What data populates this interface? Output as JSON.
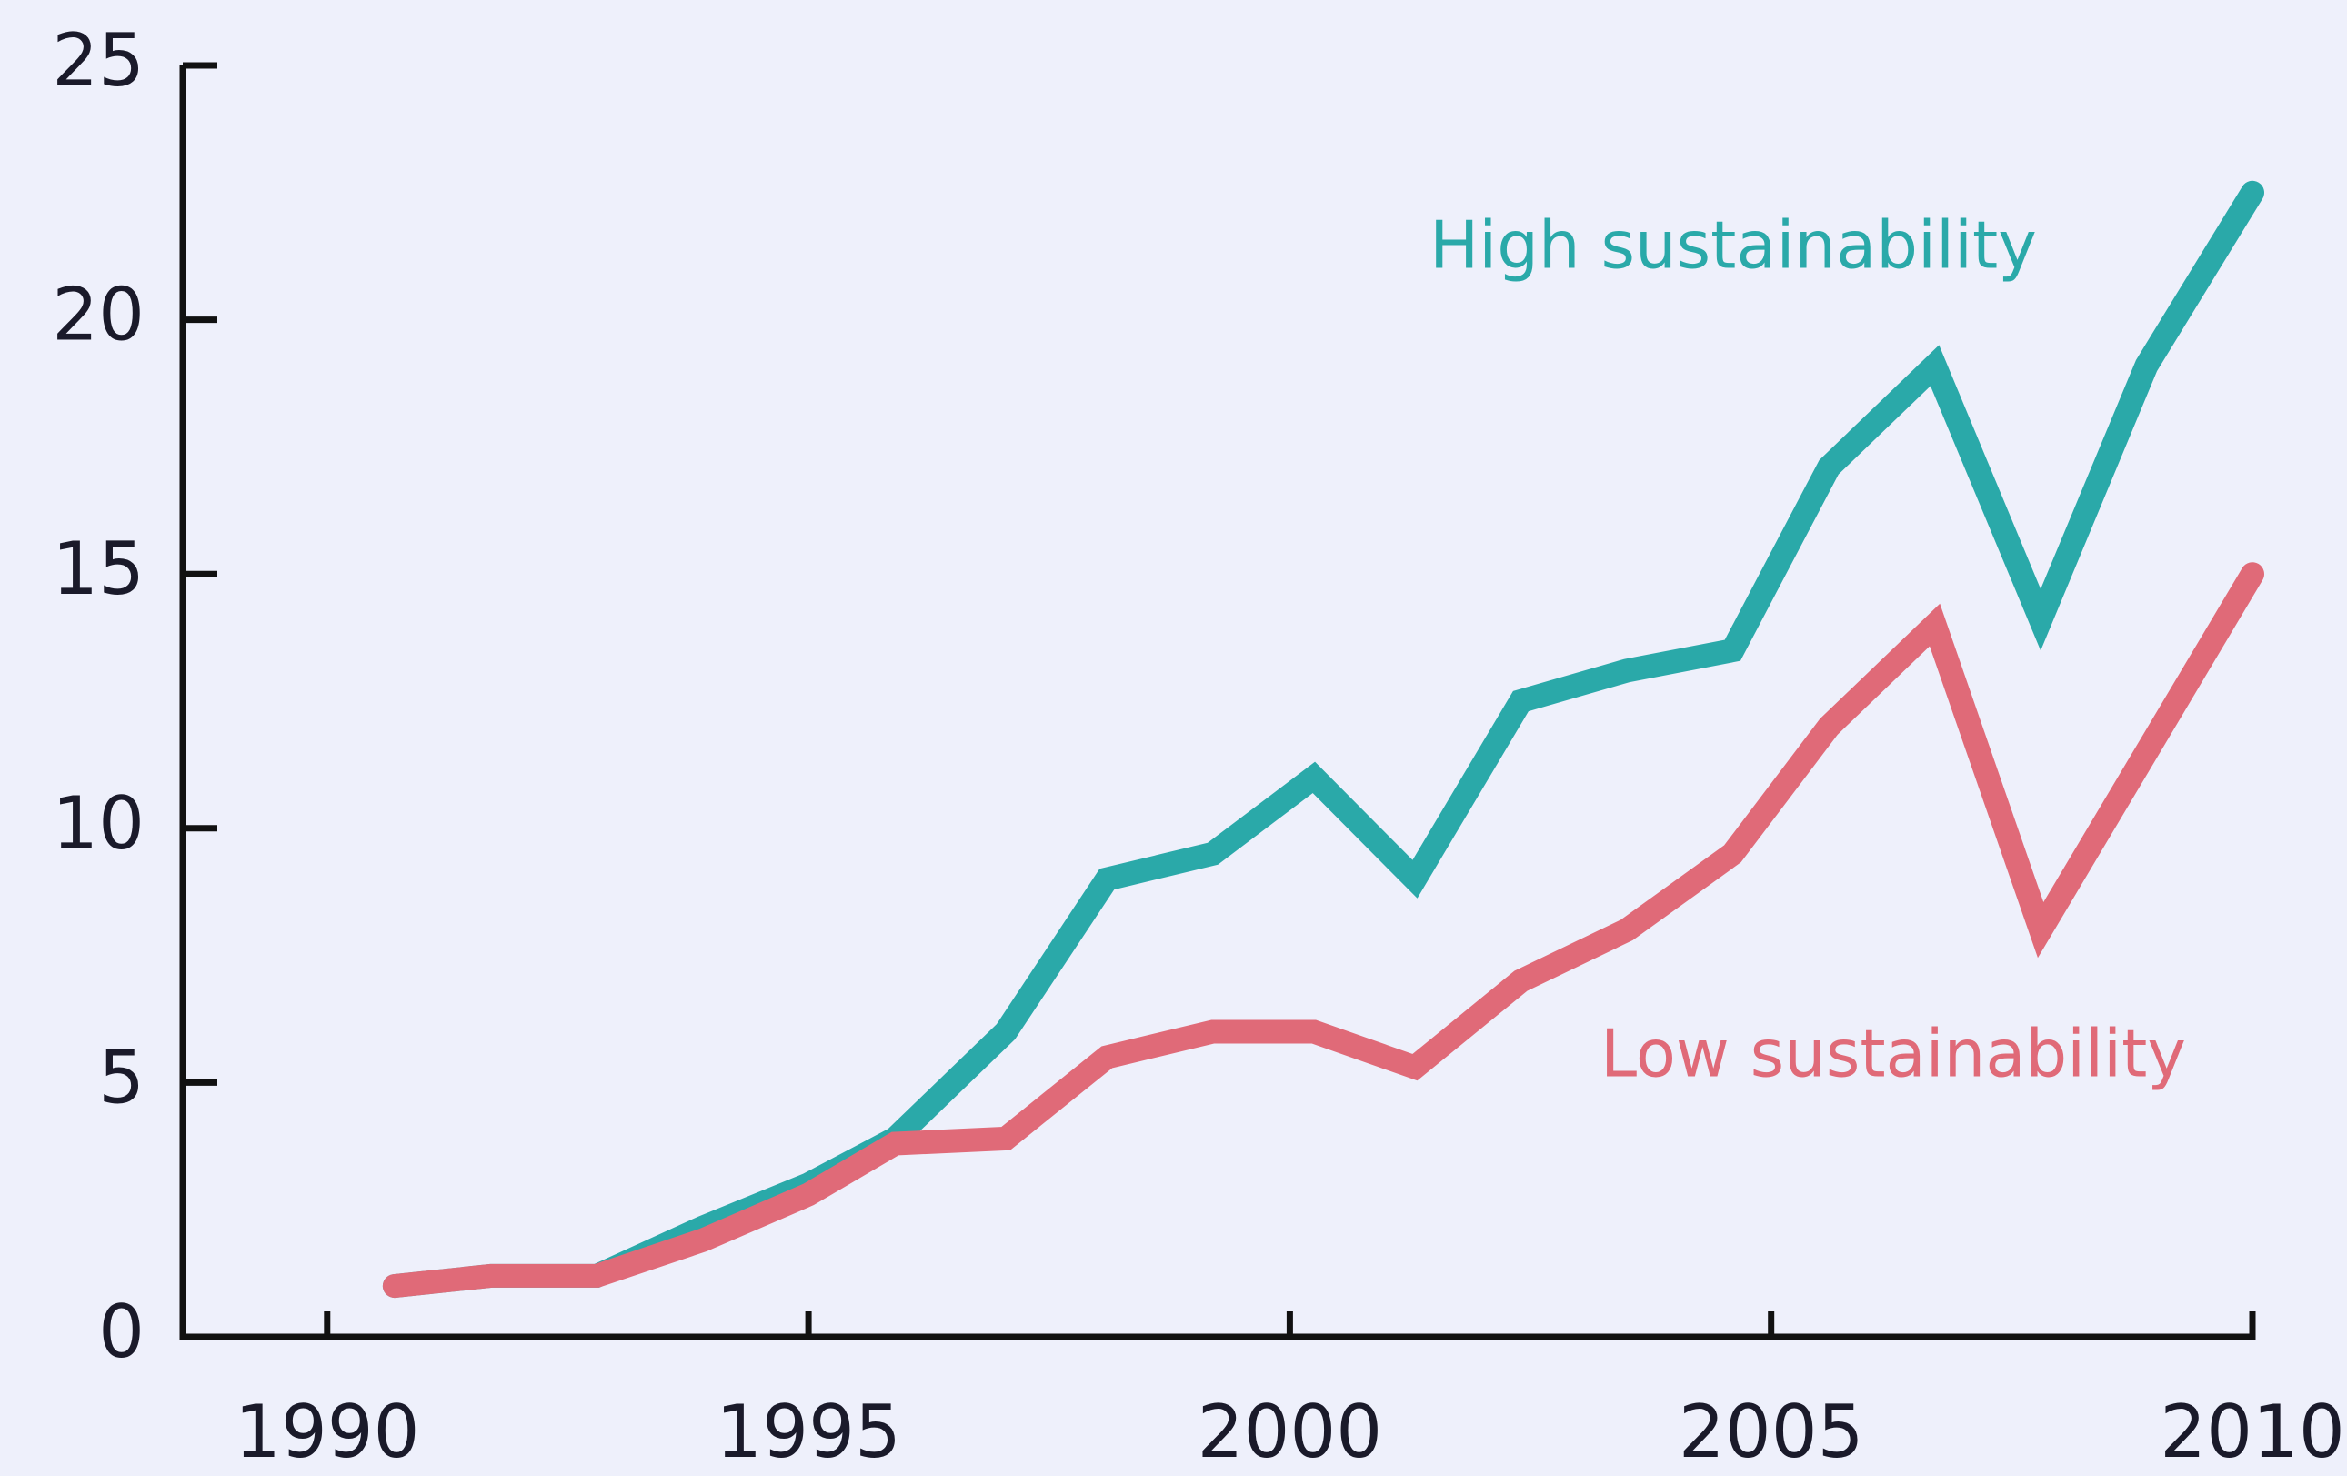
{
  "chart_data": {
    "type": "line",
    "x": [
      1990.7,
      1991.7,
      1992.8,
      1993.9,
      1995,
      1995.9,
      1997.05,
      1998.1,
      1999.2,
      2000.25,
      2001.3,
      2002.4,
      2003.5,
      2004.6,
      2005.6,
      2006.7,
      2007.8,
      2008.9,
      2010
    ],
    "series": [
      {
        "name": "High sustainability",
        "color": "#2aa9a9",
        "values": [
          1.0,
          1.2,
          1.2,
          2.15,
          3.0,
          3.9,
          6.0,
          9.0,
          9.5,
          11.0,
          9.0,
          12.5,
          13.1,
          13.5,
          17.1,
          19.1,
          14.1,
          19.1,
          22.5
        ]
      },
      {
        "name": "Low sustainability",
        "color": "#e06a78",
        "values": [
          1.0,
          1.2,
          1.2,
          1.9,
          2.8,
          3.8,
          3.9,
          5.5,
          6.0,
          6.0,
          5.3,
          7.0,
          8.0,
          9.5,
          12.0,
          14.0,
          8.0,
          11.5,
          15.0
        ]
      }
    ],
    "xlim": [
      1988.5,
      2010
    ],
    "xticks": [
      1990,
      1995,
      2000,
      2005,
      2010
    ],
    "ylim": [
      0,
      25
    ],
    "yticks": [
      0,
      5,
      10,
      15,
      20,
      25
    ]
  }
}
